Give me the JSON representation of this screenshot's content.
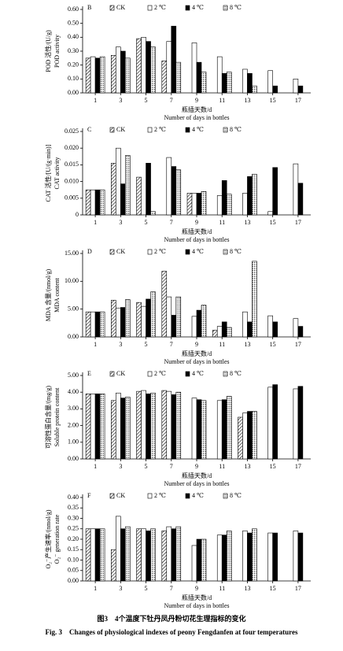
{
  "chart_data": [
    {
      "type": "bar",
      "label": "B",
      "ylabel_zh": "POD 活性/(U/g)",
      "ylabel_en": "POD activity",
      "xlabel_zh": "瓶插天数/d",
      "xlabel_en": "Number of days in bottles",
      "categories": [
        "1",
        "3",
        "5",
        "7",
        "9",
        "11",
        "13",
        "15",
        "17"
      ],
      "series": [
        {
          "name": "CK",
          "pattern": "hatch",
          "values": [
            0.25,
            0.27,
            0.39,
            0.23,
            null,
            null,
            null,
            null,
            null
          ]
        },
        {
          "name": "2 ℃",
          "pattern": "none",
          "values": [
            0.26,
            0.33,
            0.4,
            0.37,
            0.36,
            0.26,
            0.17,
            0.16,
            0.1
          ]
        },
        {
          "name": "4 ℃",
          "pattern": "solid",
          "values": [
            0.25,
            0.3,
            0.37,
            0.48,
            0.22,
            0.14,
            0.14,
            0.05,
            0.05
          ]
        },
        {
          "name": "8 ℃",
          "pattern": "dots",
          "values": [
            0.26,
            0.25,
            0.33,
            0.22,
            0.15,
            0.15,
            0.05,
            null,
            null
          ]
        }
      ],
      "ylim": [
        0,
        0.6
      ],
      "yticks": [
        {
          "value": 0,
          "label": "0.00"
        },
        {
          "value": 0.1,
          "label": "0.10"
        },
        {
          "value": 0.2,
          "label": "0.20"
        },
        {
          "value": 0.3,
          "label": "0.30"
        },
        {
          "value": 0.4,
          "label": "0.40"
        },
        {
          "value": 0.5,
          "label": "0.50"
        },
        {
          "value": 0.6,
          "label": "0.60"
        }
      ]
    },
    {
      "type": "bar",
      "label": "C",
      "ylabel_zh": "CAT 活性/[U/(g·min)]",
      "ylabel_en": "CAT activity",
      "xlabel_zh": "瓶插天数/d",
      "xlabel_en": "Number of days in bottles",
      "categories": [
        "1",
        "3",
        "5",
        "7",
        "9",
        "11",
        "13",
        "15",
        "17"
      ],
      "series": [
        {
          "name": "CK",
          "pattern": "hatch",
          "values": [
            0.0075,
            0.0155,
            0.0113,
            null,
            0.0065,
            null,
            null,
            null,
            null
          ]
        },
        {
          "name": "2 ℃",
          "pattern": "none",
          "values": [
            0.0075,
            0.02,
            null,
            0.0172,
            0.0065,
            0.0058,
            0.0065,
            0.001,
            0.0153
          ]
        },
        {
          "name": "4 ℃",
          "pattern": "solid",
          "values": [
            0.0075,
            0.0093,
            0.0155,
            0.0145,
            0.0065,
            0.0103,
            0.0115,
            0.0142,
            0.0095
          ]
        },
        {
          "name": "8 ℃",
          "pattern": "dots",
          "values": [
            0.0075,
            0.0178,
            0.001,
            0.0135,
            0.007,
            0.0062,
            0.0122,
            null,
            null
          ]
        }
      ],
      "ylim": [
        0,
        0.025
      ],
      "yticks": [
        0,
        0.005,
        {
          "value": 0.01,
          "label": "0.010"
        },
        0.015,
        {
          "value": 0.02,
          "label": "0.020"
        },
        0.025
      ]
    },
    {
      "type": "bar",
      "label": "D",
      "ylabel_zh": "MDA 含量/(nmol/g)",
      "ylabel_en": "MDA content",
      "xlabel_zh": "瓶插天数/d",
      "xlabel_en": "Number of days in bottles",
      "categories": [
        "1",
        "3",
        "5",
        "7",
        "9",
        "11",
        "13",
        "15",
        "17"
      ],
      "series": [
        {
          "name": "CK",
          "pattern": "hatch",
          "values": [
            4.5,
            6.6,
            6.2,
            11.8,
            null,
            1.2,
            null,
            null,
            null
          ]
        },
        {
          "name": "2 ℃",
          "pattern": "none",
          "values": [
            4.5,
            5.2,
            5.5,
            7.2,
            3.7,
            1.9,
            4.5,
            3.8,
            3.3
          ]
        },
        {
          "name": "4 ℃",
          "pattern": "solid",
          "values": [
            4.5,
            5.3,
            6.8,
            3.9,
            4.8,
            2.7,
            2.7,
            2.7,
            1.9
          ]
        },
        {
          "name": "8 ℃",
          "pattern": "dots",
          "values": [
            4.5,
            6.7,
            8.1,
            7.2,
            5.7,
            1.7,
            13.6,
            null,
            null
          ]
        }
      ],
      "ylim": [
        0,
        15
      ],
      "yticks": [
        {
          "value": 0,
          "label": "0.00"
        },
        {
          "value": 5,
          "label": "5.00"
        },
        {
          "value": 10,
          "label": "10.00"
        },
        {
          "value": 15,
          "label": "15.00"
        }
      ]
    },
    {
      "type": "bar",
      "label": "E",
      "ylabel_zh": "可溶性蛋白含量/(mg/g)",
      "ylabel_en": "Soluble protein content",
      "xlabel_zh": "瓶插天数/d",
      "xlabel_en": "Number of days in bottles",
      "categories": [
        "1",
        "3",
        "5",
        "7",
        "9",
        "11",
        "13",
        "15",
        "17"
      ],
      "series": [
        {
          "name": "CK",
          "pattern": "hatch",
          "values": [
            3.9,
            3.5,
            4.05,
            4.1,
            null,
            null,
            2.5,
            null,
            null
          ]
        },
        {
          "name": "2 ℃",
          "pattern": "none",
          "values": [
            3.9,
            3.95,
            4.1,
            4.05,
            3.65,
            3.5,
            2.75,
            4.3,
            4.2
          ]
        },
        {
          "name": "4 ℃",
          "pattern": "solid",
          "values": [
            3.9,
            3.65,
            3.9,
            3.85,
            3.55,
            3.55,
            2.85,
            4.45,
            4.35
          ]
        },
        {
          "name": "8 ℃",
          "pattern": "dots",
          "values": [
            3.9,
            3.7,
            3.95,
            4.0,
            3.5,
            3.75,
            2.85,
            null,
            null
          ]
        }
      ],
      "ylim": [
        0,
        5
      ],
      "yticks": [
        {
          "value": 0,
          "label": "0.00"
        },
        {
          "value": 1,
          "label": "1.00"
        },
        {
          "value": 2,
          "label": "2.00"
        },
        {
          "value": 3,
          "label": "3.00"
        },
        {
          "value": 4,
          "label": "4.00"
        },
        {
          "value": 5,
          "label": "5.00"
        }
      ]
    },
    {
      "type": "bar",
      "label": "F",
      "ylabel_zh": "O₂⁻产生速率/(nmol/g)",
      "ylabel_en": "O₂⁻ generation rate",
      "xlabel_zh": "瓶插天数/d",
      "xlabel_en": "Number of days in bottles",
      "categories": [
        "1",
        "3",
        "5",
        "7",
        "9",
        "11",
        "13",
        "15",
        "17"
      ],
      "series": [
        {
          "name": "CK",
          "pattern": "hatch",
          "values": [
            0.25,
            0.15,
            0.25,
            0.24,
            null,
            null,
            null,
            null,
            null
          ]
        },
        {
          "name": "2 ℃",
          "pattern": "none",
          "values": [
            0.25,
            0.31,
            0.25,
            0.26,
            0.17,
            0.22,
            0.24,
            0.23,
            0.24
          ]
        },
        {
          "name": "4 ℃",
          "pattern": "solid",
          "values": [
            0.25,
            0.25,
            0.24,
            0.25,
            0.2,
            0.22,
            0.23,
            0.23,
            0.23
          ]
        },
        {
          "name": "8 ℃",
          "pattern": "dots",
          "values": [
            0.25,
            0.26,
            0.25,
            0.26,
            0.2,
            0.24,
            0.25,
            null,
            null
          ]
        }
      ],
      "ylim": [
        0,
        0.4
      ],
      "yticks": [
        {
          "value": 0,
          "label": "0.00"
        },
        {
          "value": 0.05,
          "label": "0.05"
        },
        {
          "value": 0.1,
          "label": "0.10"
        },
        {
          "value": 0.15,
          "label": "0.15"
        },
        {
          "value": 0.2,
          "label": "0.20"
        },
        {
          "value": 0.25,
          "label": "0.25"
        },
        {
          "value": 0.3,
          "label": "0.30"
        },
        {
          "value": 0.35,
          "label": "0.35"
        },
        {
          "value": 0.4,
          "label": "0.40"
        }
      ]
    }
  ],
  "caption": {
    "zh": "图3　4个温度下牡丹凤丹粉切花生理指标的变化",
    "en": "Fig. 3　Changes of physiological indexes of peony Fengdanfen at four temperatures"
  }
}
